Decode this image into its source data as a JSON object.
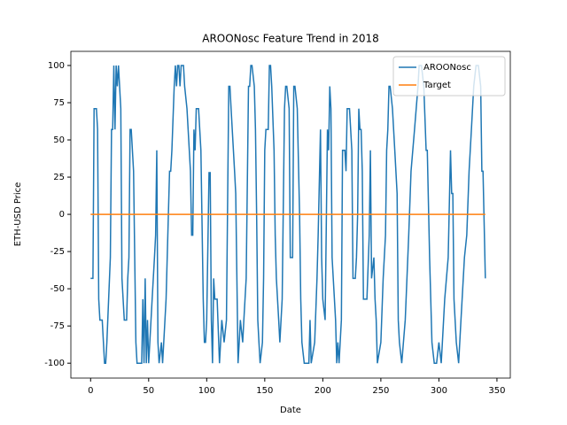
{
  "chart_data": {
    "type": "line",
    "title": "AROONosc Feature Trend in 2018",
    "xlabel": "Date",
    "ylabel": "ETH-USD Price",
    "xlim": [
      -17,
      361.5
    ],
    "ylim": [
      -110,
      109.5
    ],
    "xticks": [
      0,
      50,
      100,
      150,
      200,
      250,
      300,
      350
    ],
    "yticks": [
      -100,
      -75,
      -50,
      -25,
      0,
      25,
      50,
      75,
      100
    ],
    "legend": "upper right",
    "series": [
      {
        "name": "AROONosc",
        "color": "#1f77b4",
        "x": [
          0,
          2,
          3,
          5,
          6,
          7,
          8,
          10,
          12,
          13,
          14,
          17,
          18,
          19,
          20,
          21,
          22,
          23,
          24,
          26,
          27,
          28,
          29,
          31,
          32,
          33,
          34,
          35,
          37,
          38,
          39,
          40,
          44,
          45,
          46,
          47,
          48,
          49,
          50,
          51,
          53,
          55,
          56,
          57,
          58,
          59,
          61,
          62,
          63,
          65,
          68,
          69,
          70,
          72,
          73,
          74,
          75,
          76,
          77,
          78,
          80,
          81,
          83,
          86,
          87,
          88,
          89,
          90,
          91,
          93,
          95,
          97,
          98,
          99,
          100,
          102,
          103,
          104,
          105,
          106,
          107,
          109,
          111,
          113,
          115,
          117,
          119,
          120,
          121,
          123,
          124,
          125,
          127,
          128,
          129,
          131,
          132,
          134,
          136,
          137,
          138,
          139,
          141,
          142,
          143,
          144,
          145,
          146,
          148,
          149,
          150,
          151,
          153,
          154,
          155,
          156,
          158,
          159,
          160,
          162,
          163,
          165,
          167,
          168,
          169,
          171,
          172,
          174,
          175,
          176,
          178,
          180,
          181,
          182,
          184,
          188,
          189,
          190,
          193,
          195,
          196,
          198,
          199,
          200,
          202,
          204,
          205,
          206,
          207,
          208,
          209,
          211,
          212,
          213,
          214,
          216,
          217,
          219,
          220,
          221,
          223,
          225,
          226,
          228,
          229,
          230,
          231,
          232,
          233,
          234,
          235,
          238,
          240,
          241,
          242,
          244,
          245,
          246,
          247,
          250,
          252,
          254,
          255,
          256,
          257,
          258,
          260,
          262,
          264,
          265,
          266,
          268,
          271,
          274,
          276,
          279,
          282,
          283,
          285,
          287,
          289,
          290,
          292,
          294,
          296,
          298,
          300,
          302,
          303,
          305,
          308,
          310,
          311,
          312,
          313,
          315,
          317,
          319,
          322,
          324,
          326,
          328,
          330,
          332,
          334,
          336,
          337,
          338,
          340
        ],
        "values": [
          -43,
          -43,
          71,
          71,
          57,
          -57,
          -71,
          -71,
          -100,
          -100,
          -86,
          -29,
          57,
          57,
          100,
          57,
          100,
          86,
          100,
          71,
          -43,
          -57,
          -71,
          -71,
          -43,
          -29,
          57,
          57,
          29,
          -29,
          -86,
          -100,
          -100,
          -57,
          -100,
          -43,
          -100,
          -71,
          -100,
          -86,
          -57,
          -29,
          -14,
          43,
          -86,
          -100,
          -86,
          -100,
          -86,
          -57,
          29,
          29,
          43,
          86,
          100,
          86,
          100,
          100,
          86,
          100,
          100,
          86,
          71,
          29,
          -14,
          -14,
          57,
          43,
          71,
          71,
          43,
          -57,
          -86,
          -86,
          -71,
          28,
          28,
          -71,
          -100,
          -43,
          -57,
          -57,
          -100,
          -71,
          -86,
          -71,
          86,
          86,
          71,
          43,
          29,
          14,
          -100,
          -86,
          -71,
          -86,
          -71,
          -43,
          86,
          86,
          100,
          100,
          86,
          57,
          0,
          -71,
          -86,
          -100,
          -86,
          -43,
          43,
          57,
          57,
          100,
          100,
          86,
          43,
          -14,
          -43,
          -71,
          -86,
          -57,
          71,
          86,
          86,
          71,
          -29,
          -29,
          86,
          86,
          71,
          0,
          -57,
          -86,
          -100,
          -100,
          -71,
          -100,
          -86,
          -43,
          -14,
          57,
          -29,
          -57,
          -71,
          57,
          43,
          86,
          71,
          -29,
          -43,
          -71,
          -100,
          -86,
          -100,
          -71,
          43,
          43,
          29,
          71,
          71,
          43,
          -43,
          -43,
          -29,
          0,
          71,
          57,
          57,
          29,
          -57,
          -57,
          -14,
          43,
          -43,
          -29,
          -57,
          -71,
          -100,
          -86,
          -43,
          -14,
          43,
          57,
          86,
          86,
          71,
          43,
          14,
          -71,
          -86,
          -100,
          -71,
          -14,
          29,
          57,
          86,
          100,
          100,
          86,
          43,
          43,
          -29,
          -86,
          -100,
          -100,
          -86,
          -100,
          -86,
          -57,
          -29,
          43,
          14,
          14,
          -57,
          -86,
          -100,
          -71,
          -29,
          -14,
          29,
          57,
          86,
          100,
          100,
          86,
          29,
          29,
          -43
        ]
      },
      {
        "name": "Target",
        "color": "#ff7f0e",
        "x": [
          0,
          340
        ],
        "values": [
          0,
          0
        ]
      }
    ]
  }
}
